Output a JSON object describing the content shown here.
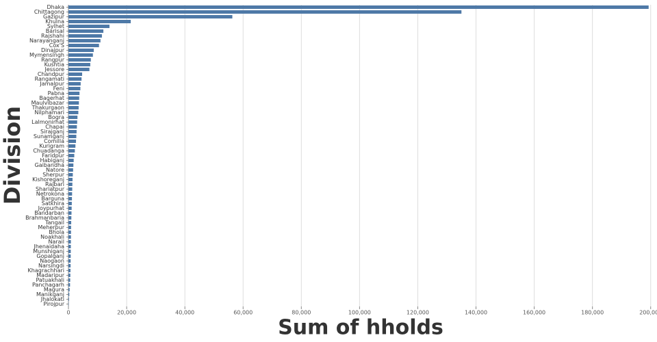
{
  "chart_data": {
    "type": "hbar",
    "x_label": "Sum of hholds",
    "y_label": "Division",
    "color": "#4e79a7",
    "grid": true,
    "xlim": [
      0,
      201000
    ],
    "xticks": [
      0,
      {
        "value": 20000,
        "label": "20,000"
      },
      {
        "value": 40000,
        "label": "40,000"
      },
      {
        "value": 60000,
        "label": "60,000"
      },
      {
        "value": 80000,
        "label": "80,000"
      },
      {
        "value": 100000,
        "label": "100,000"
      },
      {
        "value": 120000,
        "label": "120,000"
      },
      {
        "value": 140000,
        "label": "140,000"
      },
      {
        "value": 160000,
        "label": "160,000"
      },
      {
        "value": 180000,
        "label": "180,000"
      },
      {
        "value": 200000,
        "label": "200,000"
      }
    ],
    "categories": [
      "Dhaka",
      "Chittagong",
      "Gazipur",
      "Khulna",
      "Sylhet",
      "Barisal",
      "Rajshahi",
      "Narayanganj",
      "Cox'S",
      "Dinajpur",
      "Mymensingh",
      "Rangpur",
      "Kushtia",
      "Jessore",
      "Chandpur",
      "Rangamati",
      "Jamalpur",
      "Feni",
      "Pabna",
      "Bagerhat",
      "Maulvibazar",
      "Thakurgaon",
      "Nilphamari",
      "Bogra",
      "Lalmonirhat",
      "Chapai",
      "Sirajganj",
      "Sunamganj",
      "Comilla",
      "Kurigram",
      "Chuadanga",
      "Faridpur",
      "Habiganj",
      "Gaibandha",
      "Natore",
      "Sherpur",
      "Kishoreganj",
      "Rajbari",
      "Shariatpur",
      "Netrokona",
      "Barguna",
      "Satkhira",
      "Joypurhat",
      "Bandarban",
      "Brahmanbaria",
      "Tangail",
      "Meherpur",
      "Bhola",
      "Noakhali",
      "Narail",
      "Jhenaidaha",
      "Munshiganj",
      "Gopalganj",
      "Naogaon",
      "Narsingdi",
      "Khagrachhari",
      "Madaripur",
      "Patuakhali",
      "Panchagarh",
      "Magura",
      "Manikganj",
      "Jhalokati",
      "Pirojpur"
    ],
    "values": [
      199300,
      135000,
      56300,
      21400,
      14100,
      12000,
      11500,
      11000,
      10500,
      8700,
      8400,
      7700,
      7500,
      7200,
      4700,
      4500,
      4200,
      4100,
      3800,
      3700,
      3600,
      3500,
      3400,
      3100,
      3000,
      2900,
      2800,
      2700,
      2600,
      2400,
      2200,
      2000,
      1800,
      1700,
      1600,
      1500,
      1400,
      1350,
      1300,
      1250,
      1200,
      1150,
      1100,
      1050,
      1000,
      950,
      900,
      880,
      860,
      840,
      820,
      800,
      780,
      760,
      740,
      700,
      650,
      600,
      550,
      400,
      300,
      200,
      100
    ]
  }
}
